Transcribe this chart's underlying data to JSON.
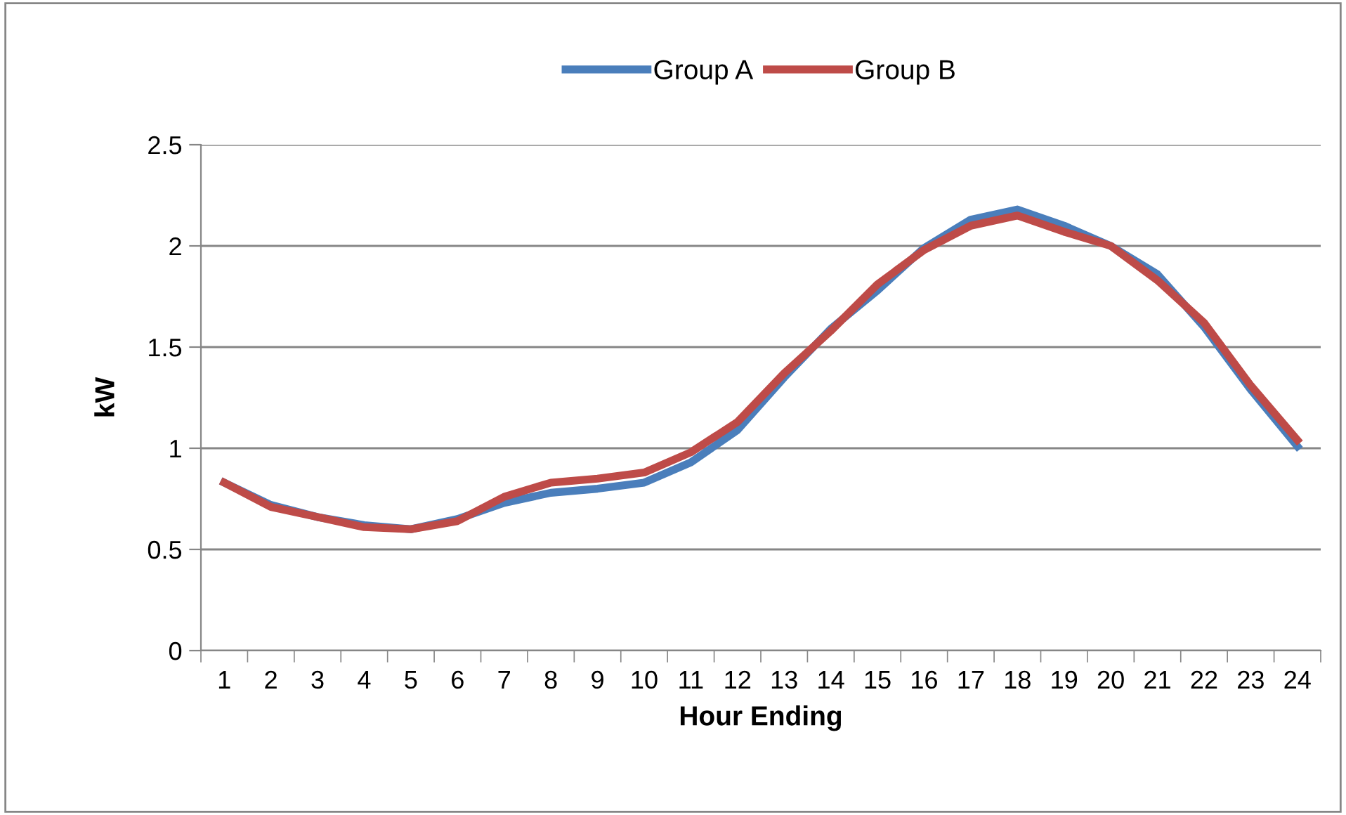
{
  "chart_data": {
    "type": "line",
    "xlabel": "Hour Ending",
    "ylabel": "kW",
    "categories": [
      "1",
      "2",
      "3",
      "4",
      "5",
      "6",
      "7",
      "8",
      "9",
      "10",
      "11",
      "12",
      "13",
      "14",
      "15",
      "16",
      "17",
      "18",
      "19",
      "20",
      "21",
      "22",
      "23",
      "24"
    ],
    "series": [
      {
        "name": "Group A",
        "color": "#4a7ebb",
        "values": [
          0.83,
          0.72,
          0.66,
          0.62,
          0.6,
          0.65,
          0.73,
          0.78,
          0.8,
          0.83,
          0.93,
          1.09,
          1.35,
          1.59,
          1.78,
          1.99,
          2.13,
          2.18,
          2.1,
          2.0,
          1.86,
          1.6,
          1.29,
          1.01
        ]
      },
      {
        "name": "Group B",
        "color": "#be4b48",
        "values": [
          0.83,
          0.71,
          0.66,
          0.61,
          0.6,
          0.64,
          0.76,
          0.83,
          0.85,
          0.88,
          0.98,
          1.13,
          1.37,
          1.58,
          1.81,
          1.98,
          2.1,
          2.15,
          2.07,
          2.0,
          1.83,
          1.62,
          1.31,
          1.04
        ]
      }
    ],
    "ylim": [
      0,
      2.5
    ],
    "yticks": [
      0,
      0.5,
      1,
      1.5,
      2,
      2.5
    ],
    "grid": "y",
    "legend": "top",
    "marker": "none",
    "line_style": "solid"
  }
}
